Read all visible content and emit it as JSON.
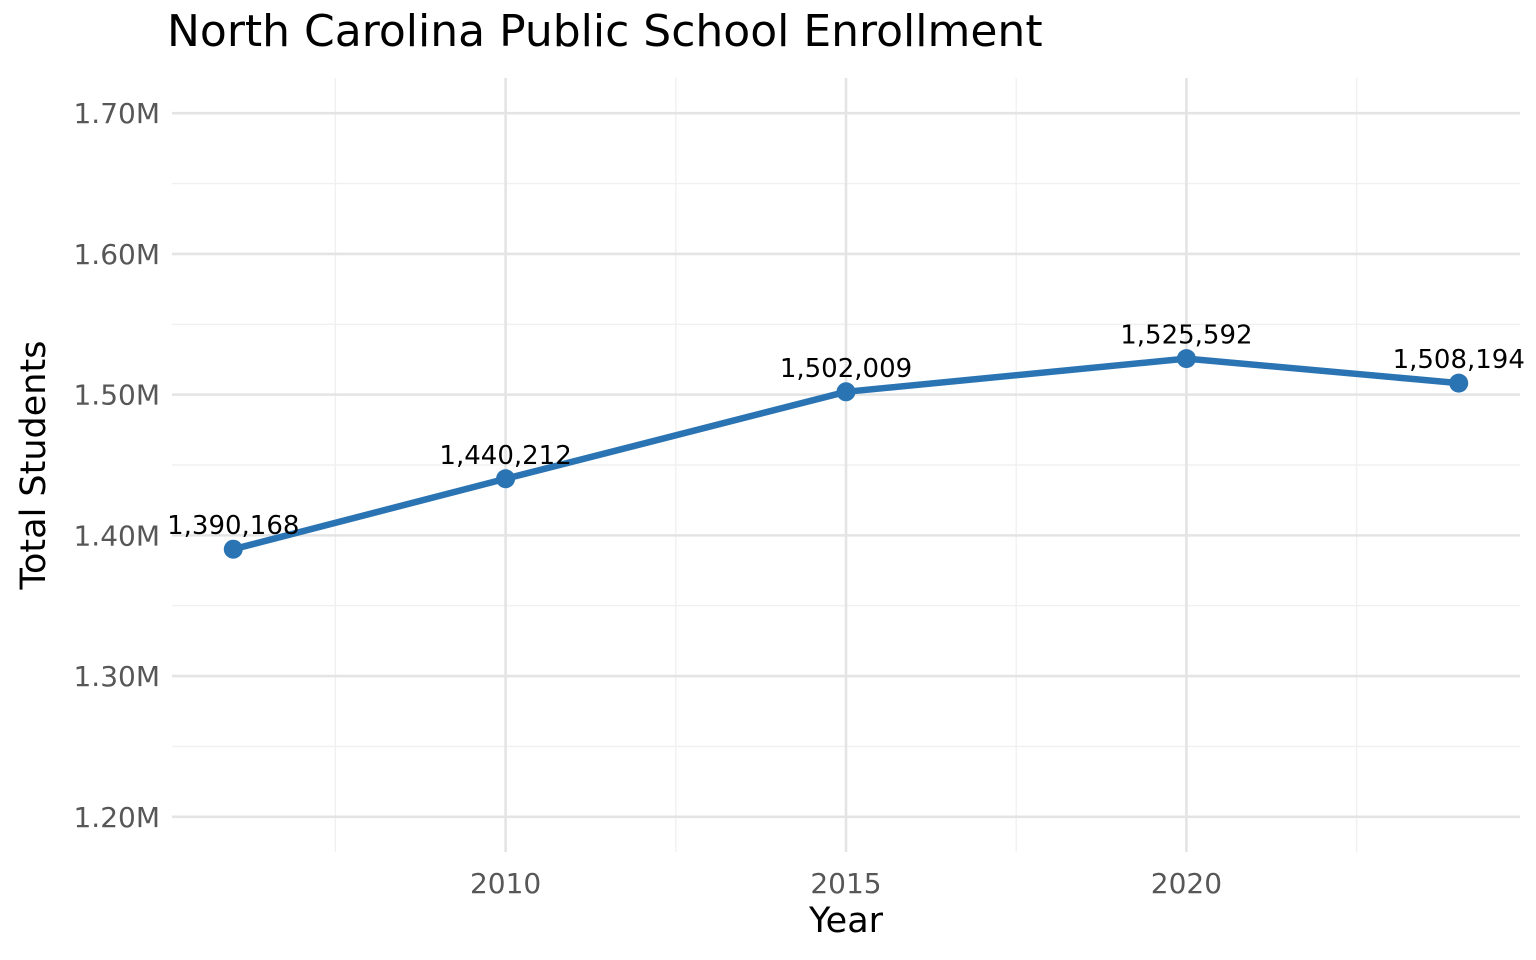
{
  "chart_data": {
    "type": "line",
    "title": "North Carolina Public School Enrollment",
    "xlabel": "Year",
    "ylabel": "Total Students",
    "series": [
      {
        "name": "Total Students",
        "x": [
          2006,
          2010,
          2015,
          2020,
          2024
        ],
        "values": [
          1390168,
          1440212,
          1502009,
          1525592,
          1508194
        ],
        "point_labels": [
          "1,390,168",
          "1,440,212",
          "1,502,009",
          "1,525,592",
          "1,508,194"
        ]
      }
    ],
    "x_ticks": [
      {
        "value": 2010,
        "label": "2010"
      },
      {
        "value": 2015,
        "label": "2015"
      },
      {
        "value": 2020,
        "label": "2020"
      }
    ],
    "y_ticks": [
      {
        "value": 1200000,
        "label": "1.20M"
      },
      {
        "value": 1300000,
        "label": "1.30M"
      },
      {
        "value": 1400000,
        "label": "1.40M"
      },
      {
        "value": 1500000,
        "label": "1.50M"
      },
      {
        "value": 1600000,
        "label": "1.60M"
      },
      {
        "value": 1700000,
        "label": "1.70M"
      }
    ],
    "x_minor_gridlines": [
      2007.5,
      2012.5,
      2017.5,
      2022.5
    ],
    "y_minor_gridlines": [
      1250000,
      1350000,
      1450000,
      1550000,
      1650000
    ],
    "xlim": [
      2005.1,
      2024.9
    ],
    "ylim": [
      1175000,
      1725000
    ],
    "grid": "on",
    "legend": "none",
    "style": {
      "line_color": "#2b74b4",
      "marker_color": "#2b74b4",
      "grid_major_color": "#e4e4e4",
      "grid_minor_color": "#f0f0f0",
      "tick_label_color": "#575757",
      "data_label_color": "#000000",
      "background_color": "#ffffff"
    }
  }
}
